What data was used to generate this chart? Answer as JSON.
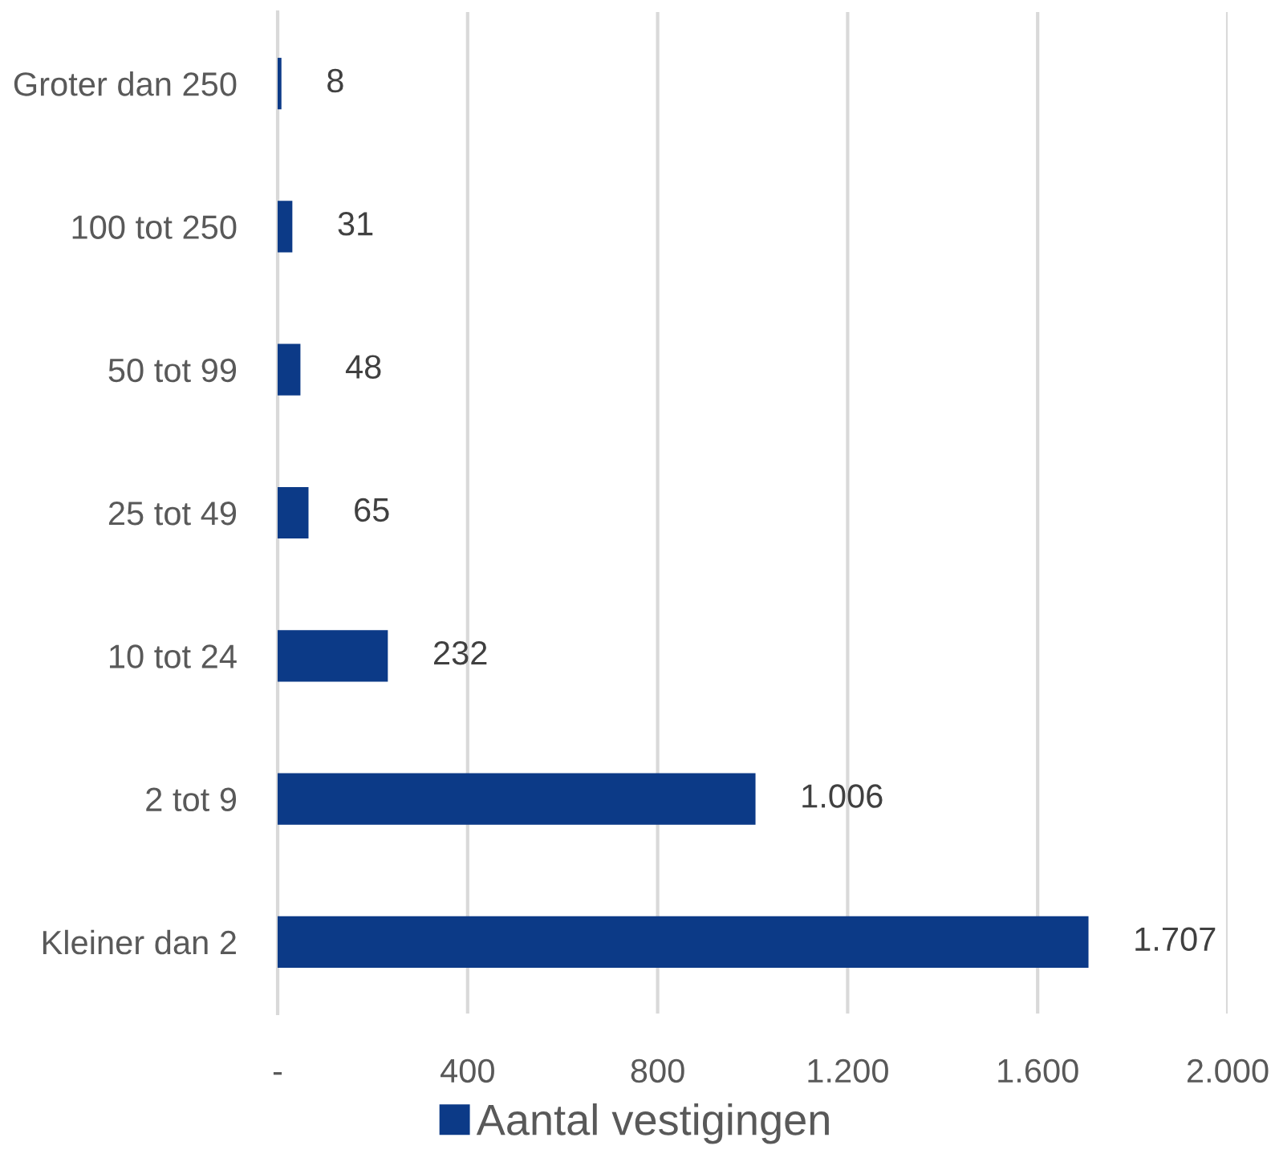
{
  "chart_data": {
    "type": "bar",
    "orientation": "horizontal",
    "categories": [
      "Groter dan 250",
      "100 tot 250",
      "50 tot 99",
      "25 tot 49",
      "10 tot 24",
      "2 tot 9",
      "Kleiner dan 2"
    ],
    "series": [
      {
        "name": "Aantal vestigingen",
        "color": "#0c3a87",
        "values": [
          8,
          31,
          48,
          65,
          232,
          1006,
          1707
        ],
        "value_labels": [
          "8",
          "31",
          "48",
          "65",
          "232",
          "1.006",
          "1.707"
        ]
      }
    ],
    "xlim": [
      0,
      2000
    ],
    "xticks": [
      {
        "value": 0,
        "label": "-"
      },
      400,
      800,
      {
        "value": 1200,
        "label": "1.200"
      },
      {
        "value": 1600,
        "label": "1.600"
      },
      {
        "value": 2000,
        "label": "2.000"
      }
    ],
    "grid": "x",
    "legend": "bottom"
  }
}
